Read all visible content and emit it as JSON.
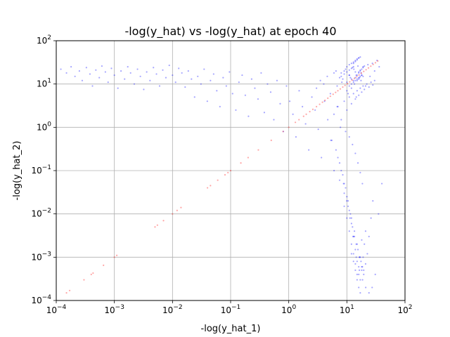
{
  "chart_data": {
    "type": "scatter",
    "title": "-log(y_hat) vs -log(y_hat) at epoch 40",
    "xlabel": "-log(y_hat_1)",
    "ylabel": "-log(y_hat_2)",
    "xscale": "log",
    "yscale": "log",
    "xlim": [
      0.0001,
      100
    ],
    "ylim": [
      0.0001,
      100
    ],
    "grid": true,
    "x_ticks": [
      {
        "value": 0.0001,
        "base": "10",
        "exp": "−4"
      },
      {
        "value": 0.001,
        "base": "10",
        "exp": "−3"
      },
      {
        "value": 0.01,
        "base": "10",
        "exp": "−2"
      },
      {
        "value": 0.1,
        "base": "10",
        "exp": "−1"
      },
      {
        "value": 1,
        "base": "10",
        "exp": "0"
      },
      {
        "value": 10,
        "base": "10",
        "exp": "1"
      },
      {
        "value": 100,
        "base": "10",
        "exp": "2"
      }
    ],
    "y_ticks": [
      {
        "value": 0.0001,
        "base": "10",
        "exp": "−4"
      },
      {
        "value": 0.001,
        "base": "10",
        "exp": "−3"
      },
      {
        "value": 0.01,
        "base": "10",
        "exp": "−2"
      },
      {
        "value": 0.1,
        "base": "10",
        "exp": "−1"
      },
      {
        "value": 1,
        "base": "10",
        "exp": "0"
      },
      {
        "value": 10,
        "base": "10",
        "exp": "1"
      },
      {
        "value": 100,
        "base": "10",
        "exp": "2"
      }
    ],
    "series": [
      {
        "color": "#0000ff",
        "x": [
          0.00012,
          0.00015,
          0.00018,
          0.00021,
          0.00025,
          0.00028,
          0.00033,
          0.00038,
          0.00042,
          0.00048,
          0.00055,
          0.00061,
          0.0007,
          0.00078,
          0.00089,
          0.001,
          0.00115,
          0.0013,
          0.0015,
          0.0017,
          0.0019,
          0.0022,
          0.0025,
          0.0028,
          0.0032,
          0.0036,
          0.0041,
          0.0047,
          0.0053,
          0.006,
          0.0068,
          0.0077,
          0.0088,
          0.01,
          0.0113,
          0.0128,
          0.0145,
          0.0165,
          0.0187,
          0.0212,
          0.024,
          0.0272,
          0.0309,
          0.035,
          0.0397,
          0.045,
          0.051,
          0.0578,
          0.0655,
          0.0743,
          0.0842,
          0.0955,
          0.108,
          0.123,
          0.139,
          0.158,
          0.179,
          0.203,
          0.23,
          0.261,
          0.296,
          0.335,
          0.38,
          0.431,
          0.489,
          0.554,
          0.628,
          0.712,
          0.807,
          0.915,
          1.04,
          1.18,
          1.33,
          1.51,
          1.72,
          1.95,
          2.21,
          2.5,
          2.84,
          3.22,
          3.65,
          4.13,
          4.69,
          5.31,
          6.02,
          6.83,
          7.74,
          8.78,
          9.95,
          11.3,
          12.8,
          14.5,
          16.4,
          18.6,
          21.1,
          24.0,
          27.2,
          30.8,
          35.0,
          40.0,
          3.0,
          3.5,
          4.0,
          4.6,
          5.2,
          6.0,
          6.8,
          7.5,
          8.2,
          9.0,
          10.0,
          11.0,
          12.0,
          13.2,
          14.5,
          16.0,
          17.5,
          19.0,
          21.0,
          23.0,
          25.0,
          27.5,
          30.0,
          33.0,
          36.0,
          5.5,
          6.5,
          7.5,
          8.5,
          9.5,
          10.5,
          11.5,
          12.5,
          13.5,
          14.5,
          15.5,
          16.5,
          17.5,
          18.5,
          19.5,
          21.0,
          22.5,
          24.0,
          26.0,
          28.0,
          6.0,
          7.0,
          8.0,
          9.0,
          10.0,
          11.0,
          12.0,
          13.0,
          14.0,
          15.0,
          16.0,
          17.0,
          18.0,
          19.0,
          20.0,
          22.0,
          24.0,
          26.0,
          28.0,
          30.0,
          7.0,
          8.0,
          9.0,
          10.0,
          11.0,
          12.0,
          13.0,
          14.0,
          15.0,
          16.0,
          17.0,
          18.0,
          19.0,
          20.0,
          21.0,
          8.0,
          9.0,
          10.0,
          11.0,
          12.0,
          13.0,
          14.0,
          15.0,
          16.0,
          17.0,
          18.0,
          19.0,
          20.0,
          9.0,
          10.0,
          11.0,
          12.0,
          13.0,
          14.0,
          15.0,
          16.0,
          17.0,
          18.0,
          10.0,
          11.0,
          12.0,
          13.0,
          14.0,
          15.0,
          16.0,
          17.0,
          10.5,
          12.0,
          13.5,
          15.0,
          16.5,
          18.0,
          9.5,
          11.0,
          12.5,
          14.0,
          15.5,
          17.0,
          18.5,
          8.5,
          10.0,
          11.5,
          13.0,
          14.5,
          16.0,
          17.5,
          19.0,
          7.5,
          9.0,
          10.5,
          12.0,
          13.5,
          15.0,
          16.5,
          18.0,
          19.5,
          6.5,
          8.0,
          9.5,
          11.0,
          12.5,
          14.0,
          15.5,
          17.0,
          11.0,
          12.0,
          13.0,
          14.0,
          15.0,
          16.0,
          17.0,
          18.0,
          12.0,
          13.0,
          14.0,
          15.0,
          16.0,
          17.0,
          13.0,
          14.0,
          15.0,
          16.0
        ],
        "y": [
          22.0,
          18.0,
          25.0,
          15.0,
          20.0,
          12.0,
          24.0,
          17.0,
          9.0,
          21.0,
          14.0,
          26.0,
          19.0,
          11.0,
          23.0,
          16.0,
          8.0,
          20.0,
          13.0,
          25.0,
          18.0,
          10.0,
          22.0,
          15.0,
          7.5,
          19.0,
          12.0,
          24.0,
          17.0,
          9.0,
          21.0,
          14.0,
          27.0,
          16.0,
          11.0,
          23.0,
          18.0,
          8.5,
          20.0,
          13.0,
          5.0,
          15.0,
          10.0,
          22.0,
          4.0,
          12.0,
          17.0,
          7.0,
          3.0,
          14.0,
          9.0,
          19.0,
          6.0,
          2.5,
          11.0,
          16.0,
          5.5,
          1.8,
          13.0,
          8.0,
          4.5,
          18.0,
          2.2,
          10.0,
          6.5,
          1.5,
          12.0,
          3.5,
          0.8,
          9.0,
          4.0,
          2.0,
          0.6,
          7.0,
          3.0,
          1.2,
          0.3,
          5.0,
          2.5,
          0.9,
          0.2,
          4.0,
          1.5,
          0.5,
          0.1,
          3.0,
          1.0,
          0.05,
          0.02,
          0.008,
          0.003,
          0.001,
          0.0005,
          0.0003,
          0.0002,
          0.00015,
          0.0002,
          0.0004,
          0.01,
          0.05,
          8.0,
          12.0,
          10.0,
          15.0,
          6.0,
          18.0,
          9.0,
          14.0,
          11.0,
          20.0,
          7.0,
          16.0,
          13.0,
          22.0,
          5.0,
          19.0,
          12.0,
          25.0,
          9.0,
          28.0,
          15.0,
          30.0,
          20.0,
          35.0,
          25.0,
          0.5,
          0.3,
          0.15,
          0.08,
          0.04,
          0.02,
          0.01,
          0.005,
          0.003,
          0.002,
          0.0015,
          0.001,
          0.0008,
          0.0006,
          0.0005,
          0.0007,
          0.0012,
          0.003,
          0.008,
          0.02,
          2.0,
          3.0,
          1.5,
          4.0,
          2.5,
          5.0,
          3.5,
          6.0,
          4.5,
          7.0,
          5.5,
          8.0,
          6.5,
          9.0,
          7.5,
          10.0,
          8.5,
          11.0,
          9.5,
          12.0,
          0.2,
          0.1,
          0.05,
          0.025,
          0.012,
          0.006,
          0.003,
          0.0015,
          0.0008,
          0.0004,
          0.0003,
          0.0005,
          0.001,
          0.002,
          0.004,
          15.0,
          17.0,
          19.0,
          21.0,
          23.0,
          25.0,
          14.0,
          16.0,
          18.0,
          20.0,
          22.0,
          24.0,
          26.0,
          0.015,
          0.008,
          0.004,
          0.002,
          0.0012,
          0.0007,
          0.0004,
          0.0006,
          0.001,
          0.0025,
          25.0,
          28.0,
          30.0,
          32.0,
          35.0,
          38.0,
          40.0,
          42.0,
          6.0,
          8.0,
          10.0,
          12.0,
          14.0,
          16.0,
          0.8,
          0.6,
          0.4,
          0.25,
          0.15,
          0.09,
          0.05,
          13.0,
          11.0,
          14.0,
          12.0,
          16.0,
          13.0,
          18.0,
          15.0,
          0.06,
          0.03,
          0.015,
          0.008,
          0.004,
          0.002,
          0.001,
          0.0006,
          0.0004,
          20.0,
          18.0,
          22.0,
          16.0,
          24.0,
          19.0,
          26.0,
          21.0,
          9.0,
          10.0,
          11.0,
          12.0,
          13.0,
          14.0,
          15.0,
          16.0,
          0.0012,
          0.0008,
          0.0005,
          0.0003,
          0.0002,
          0.00015,
          30.0,
          33.0,
          36.0,
          40.0
        ]
      },
      {
        "color": "#ff0000",
        "x": [
          0.00015,
          0.00017,
          0.0003,
          0.0004,
          0.00043,
          0.00065,
          0.001,
          0.0011,
          0.005,
          0.0055,
          0.007,
          0.01,
          0.012,
          0.014,
          0.04,
          0.045,
          0.06,
          0.08,
          0.09,
          0.1,
          0.15,
          0.2,
          0.3,
          0.5,
          0.8,
          1.0,
          1.3,
          1.5,
          1.8,
          2.0,
          2.3,
          2.6,
          3.0,
          3.4,
          3.8,
          4.2,
          4.7,
          5.2,
          5.8,
          6.4,
          7.0,
          7.7,
          8.5,
          9.3,
          10.2,
          11.2,
          12.3,
          13.5,
          14.8,
          16.2,
          17.8,
          19.5,
          21.4,
          23.5,
          25.8,
          28.3,
          31.0,
          34.0
        ],
        "y": [
          0.00015,
          0.00017,
          0.0003,
          0.0004,
          0.00043,
          0.00065,
          0.001,
          0.0011,
          0.005,
          0.0055,
          0.007,
          0.01,
          0.012,
          0.014,
          0.04,
          0.045,
          0.06,
          0.08,
          0.09,
          0.1,
          0.15,
          0.2,
          0.3,
          0.5,
          0.8,
          1.0,
          1.3,
          1.5,
          1.8,
          2.0,
          2.3,
          2.6,
          3.0,
          3.4,
          3.8,
          4.2,
          4.7,
          5.2,
          5.8,
          6.4,
          7.0,
          7.7,
          8.5,
          9.3,
          10.2,
          11.2,
          12.3,
          13.5,
          14.8,
          16.2,
          17.8,
          19.5,
          21.4,
          23.5,
          25.8,
          28.3,
          31.0,
          34.0
        ]
      }
    ]
  }
}
